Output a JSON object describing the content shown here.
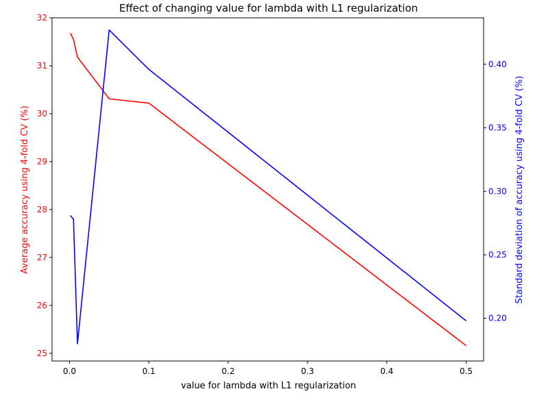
{
  "chart_data": {
    "type": "line",
    "title": "Effect of changing value for lambda with L1 regularization",
    "xlabel": "value for lambda with L1 regularization",
    "ylabel_left": "Average accuracy using 4-fold CV (%)",
    "ylabel_right": "Standard deviation of accuracy using 4-fold CV (%)",
    "xlim": [
      -0.022,
      0.522
    ],
    "ylim_left": [
      24.84,
      32.0
    ],
    "ylim_right": [
      0.1664,
      0.4366
    ],
    "x_ticks": [
      0.0,
      0.1,
      0.2,
      0.3,
      0.4,
      0.5
    ],
    "x_tick_labels": [
      "0.0",
      "0.1",
      "0.2",
      "0.3",
      "0.4",
      "0.5"
    ],
    "y_left_ticks": [
      25,
      26,
      27,
      28,
      29,
      30,
      31,
      32
    ],
    "y_left_tick_labels": [
      "25",
      "26",
      "27",
      "28",
      "29",
      "30",
      "31",
      "32"
    ],
    "y_right_ticks": [
      0.2,
      0.25,
      0.3,
      0.35,
      0.4
    ],
    "y_right_tick_labels": [
      "0.20",
      "0.25",
      "0.30",
      "0.35",
      "0.40"
    ],
    "grid": false,
    "series": [
      {
        "axis": "left",
        "color": "#ff0000",
        "x": [
          0.001,
          0.005,
          0.01,
          0.05,
          0.1,
          0.5
        ],
        "values": [
          31.68,
          31.55,
          31.18,
          30.31,
          30.22,
          25.16
        ]
      },
      {
        "axis": "right",
        "color": "#0000ff",
        "x": [
          0.001,
          0.005,
          0.01,
          0.05,
          0.1,
          0.5
        ],
        "values": [
          0.281,
          0.278,
          0.18,
          0.427,
          0.396,
          0.198
        ]
      }
    ]
  }
}
